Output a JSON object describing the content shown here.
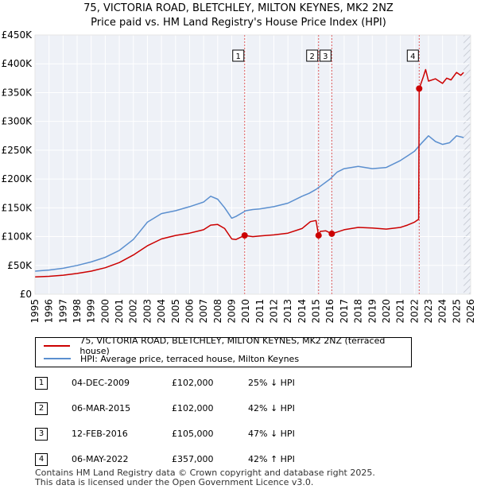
{
  "chart_data": {
    "type": "line",
    "title": "75, VICTORIA ROAD, BLETCHLEY, MILTON KEYNES, MK2 2NZ",
    "subtitle": "Price paid vs. HM Land Registry's House Price Index (HPI)",
    "xlabel": "",
    "ylabel": "",
    "xlim": [
      1995,
      2026
    ],
    "ylim": [
      0,
      450000
    ],
    "grid": true,
    "y_ticks": [
      {
        "value": 0,
        "label": "£0"
      },
      {
        "value": 50000,
        "label": "£50K"
      },
      {
        "value": 100000,
        "label": "£100K"
      },
      {
        "value": 150000,
        "label": "£150K"
      },
      {
        "value": 200000,
        "label": "£200K"
      },
      {
        "value": 250000,
        "label": "£250K"
      },
      {
        "value": 300000,
        "label": "£300K"
      },
      {
        "value": 350000,
        "label": "£350K"
      },
      {
        "value": 400000,
        "label": "£400K"
      },
      {
        "value": 450000,
        "label": "£450K"
      }
    ],
    "x_ticks": [
      "1995",
      "1996",
      "1997",
      "1998",
      "1999",
      "2000",
      "2001",
      "2002",
      "2003",
      "2004",
      "2005",
      "2006",
      "2007",
      "2008",
      "2009",
      "2010",
      "2011",
      "2012",
      "2013",
      "2014",
      "2015",
      "2016",
      "2017",
      "2018",
      "2019",
      "2020",
      "2021",
      "2022",
      "2023",
      "2024",
      "2025",
      "2026"
    ],
    "series": [
      {
        "name": "75, VICTORIA ROAD, BLETCHLEY, MILTON KEYNES, MK2 2NZ (terraced house)",
        "color": "#cc0000",
        "x": [
          1995.0,
          1996.0,
          1997.0,
          1998.0,
          1999.0,
          2000.0,
          2001.0,
          2002.0,
          2002.5,
          2003.0,
          2004.0,
          2005.0,
          2006.0,
          2007.0,
          2007.5,
          2008.0,
          2008.5,
          2009.0,
          2009.3,
          2009.92,
          2010.5,
          2011.0,
          2012.0,
          2013.0,
          2014.0,
          2014.6,
          2015.0,
          2015.18,
          2015.3,
          2015.7,
          2016.12,
          2016.5,
          2017.0,
          2018.0,
          2019.0,
          2020.0,
          2021.0,
          2021.5,
          2022.0,
          2022.3,
          2022.34,
          2022.6,
          2022.8,
          2023.0,
          2023.5,
          2024.0,
          2024.3,
          2024.6,
          2025.0,
          2025.3,
          2025.5
        ],
        "values": [
          30000,
          31000,
          33000,
          36000,
          40000,
          46000,
          55000,
          68000,
          76000,
          84000,
          96000,
          102000,
          106000,
          112000,
          120000,
          121000,
          114000,
          96000,
          95000,
          102000,
          100000,
          101000,
          103000,
          106000,
          114000,
          126000,
          128000,
          102000,
          109000,
          110000,
          105000,
          108000,
          112000,
          116000,
          115000,
          113000,
          116000,
          120000,
          125000,
          130000,
          357000,
          375000,
          390000,
          370000,
          374000,
          366000,
          375000,
          372000,
          385000,
          380000,
          385000
        ],
        "markers": [
          {
            "x": 2009.92,
            "y": 102000
          },
          {
            "x": 2015.18,
            "y": 102000
          },
          {
            "x": 2016.12,
            "y": 105000
          },
          {
            "x": 2022.34,
            "y": 357000
          }
        ]
      },
      {
        "name": "HPI: Average price, terraced house, Milton Keynes",
        "color": "#5b8fcf",
        "x": [
          1995.0,
          1996.0,
          1997.0,
          1998.0,
          1999.0,
          2000.0,
          2001.0,
          2002.0,
          2002.5,
          2003.0,
          2004.0,
          2005.0,
          2006.0,
          2007.0,
          2007.5,
          2008.0,
          2008.5,
          2009.0,
          2009.3,
          2010.0,
          2010.5,
          2011.0,
          2012.0,
          2013.0,
          2014.0,
          2014.5,
          2015.0,
          2016.0,
          2016.5,
          2017.0,
          2018.0,
          2019.0,
          2020.0,
          2021.0,
          2021.5,
          2022.0,
          2022.5,
          2023.0,
          2023.5,
          2024.0,
          2024.5,
          2025.0,
          2025.5
        ],
        "values": [
          40000,
          42000,
          45000,
          50000,
          56000,
          64000,
          76000,
          95000,
          110000,
          125000,
          140000,
          145000,
          152000,
          160000,
          170000,
          165000,
          150000,
          132000,
          135000,
          145000,
          147000,
          148000,
          152000,
          158000,
          170000,
          175000,
          182000,
          200000,
          212000,
          218000,
          222000,
          218000,
          220000,
          232000,
          240000,
          248000,
          262000,
          275000,
          265000,
          260000,
          263000,
          275000,
          272000
        ]
      }
    ],
    "annotations": [
      {
        "label": "1",
        "x": 2009.92
      },
      {
        "label": "2",
        "x": 2015.18
      },
      {
        "label": "3",
        "x": 2016.12
      },
      {
        "label": "4",
        "x": 2022.34
      }
    ]
  },
  "legend": {
    "property_label": "75, VICTORIA ROAD, BLETCHLEY, MILTON KEYNES, MK2 2NZ (terraced house)",
    "hpi_label": "HPI: Average price, terraced house, Milton Keynes",
    "property_color": "#cc0000",
    "hpi_color": "#5b8fcf"
  },
  "sales": [
    {
      "num": "1",
      "date": "04-DEC-2009",
      "price": "£102,000",
      "hpi": "25% ↓ HPI"
    },
    {
      "num": "2",
      "date": "06-MAR-2015",
      "price": "£102,000",
      "hpi": "42% ↓ HPI"
    },
    {
      "num": "3",
      "date": "12-FEB-2016",
      "price": "£105,000",
      "hpi": "47% ↓ HPI"
    },
    {
      "num": "4",
      "date": "06-MAY-2022",
      "price": "£357,000",
      "hpi": "42% ↑ HPI"
    }
  ],
  "footer": {
    "line1": "Contains HM Land Registry data © Crown copyright and database right 2025.",
    "line2": "This data is licensed under the Open Government Licence v3.0."
  }
}
